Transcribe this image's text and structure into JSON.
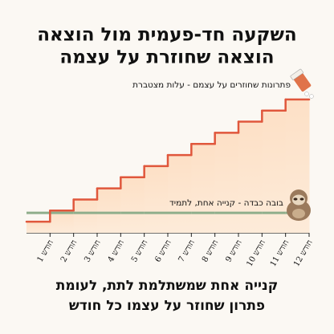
{
  "chart_data": {
    "type": "step",
    "title_lines": [
      "השקעה חד-פעמית מול הוצאה",
      "הוצאה שחוזרת על עצמה"
    ],
    "footer_lines": [
      "קנייה אחת שמשתלמת לתת, לעומת",
      "פתרון שחוזר על עצמו כל חודש"
    ],
    "categories": [
      "חודש 1",
      "חודש 2",
      "חודש 3",
      "חודש 4",
      "חודש 5",
      "חודש 6",
      "חודש 7",
      "חודש 8",
      "חודש 9",
      "חודש 10",
      "חודש 11",
      "חודש 12"
    ],
    "series": [
      {
        "name": "פתרונות שחוזרים על עצמם - עלות מצטברת",
        "color": "#e0573c",
        "values": [
          1,
          2,
          3,
          4,
          5,
          6,
          7,
          8,
          9,
          10,
          11,
          12
        ]
      },
      {
        "name": "בובה כבדה - קנייה אחת, לתמיד",
        "color": "#8fae8b",
        "values": [
          1.8,
          1.8,
          1.8,
          1.8,
          1.8,
          1.8,
          1.8,
          1.8,
          1.8,
          1.8,
          1.8,
          1.8
        ]
      }
    ],
    "ylim": [
      0,
      13
    ]
  }
}
